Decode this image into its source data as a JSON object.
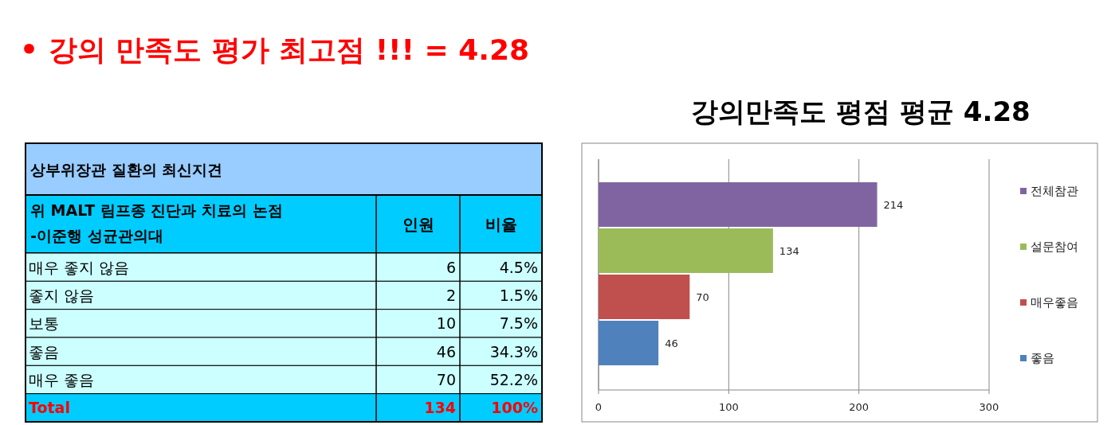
{
  "chart_data": [
    {
      "type": "other",
      "title": "•  강의 만족도 평가 최고점 !!!   =   4.28",
      "subtitle": "상부위장관 질환의 최신지견",
      "ylabel": "위 MALT 림프종 진단과 치료의 논점\n-이준행 성균관의대",
      "categories": [
        "인원",
        "비율"
      ],
      "y_categories": [
        " 매우 좋지 않음",
        "좋지 않음",
        " 보통",
        "좋음",
        " 매우 좋음",
        "Total"
      ],
      "cell_labels": [
        [
          "6",
          "4.5%"
        ],
        [
          "2",
          "1.5%"
        ],
        [
          "10",
          "7.5%"
        ],
        [
          "46",
          "34.3%"
        ],
        [
          "70",
          "52.2%"
        ],
        [
          "134",
          "100%"
        ]
      ]
    },
    {
      "type": "bar",
      "orientation": "horizontal",
      "title": "강의만족도 평점 평균 4.28",
      "categories": [
        null
      ],
      "xlim": [
        0,
        300
      ],
      "xticks": [
        0,
        100,
        200,
        300
      ],
      "grid": "x",
      "legend": "right",
      "data_labels": true,
      "series": [
        {
          "name": "전체참관",
          "color": "#8064a2",
          "values": [
            214
          ]
        },
        {
          "name": "설문참여",
          "color": "#9bbb59",
          "values": [
            134
          ]
        },
        {
          "name": "매우좋음",
          "color": "#c0504d",
          "values": [
            70
          ]
        },
        {
          "name": "좋음",
          "color": "#4f81bd",
          "values": [
            46
          ]
        }
      ]
    }
  ]
}
